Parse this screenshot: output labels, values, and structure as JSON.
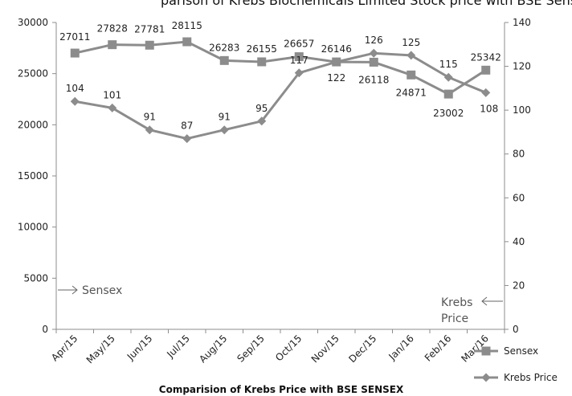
{
  "title_fragment": "parison of Krebs Biochemicals Limited Stock price with BSE Sensex:",
  "caption": "Comparision of Krebs Price with BSE SENSEX",
  "colors": {
    "series": "#8c8c8c",
    "axis": "#8c8c8c",
    "text": "#222222"
  },
  "chart_data": {
    "type": "line",
    "categories": [
      "Apr/15",
      "May/15",
      "Jun/15",
      "Jul/15",
      "Aug/15",
      "Sep/15",
      "Oct/15",
      "Nov/15",
      "Dec/15",
      "Jan/16",
      "Feb/16",
      "Mar/16"
    ],
    "series": [
      {
        "name": "Sensex",
        "axis": "left",
        "marker": "square",
        "values": [
          27011,
          27828,
          27781,
          28115,
          26283,
          26155,
          26657,
          26146,
          26118,
          24871,
          23002,
          25342
        ]
      },
      {
        "name": "Krebs Price",
        "axis": "right",
        "marker": "diamond",
        "values": [
          104,
          101,
          91,
          87,
          91,
          95,
          117,
          122,
          126,
          125,
          115,
          108
        ]
      }
    ],
    "y_left": {
      "min": 0,
      "max": 30000,
      "ticks": [
        0,
        5000,
        10000,
        15000,
        20000,
        25000,
        30000
      ]
    },
    "y_right": {
      "min": 0,
      "max": 140,
      "ticks": [
        0,
        20,
        40,
        60,
        80,
        100,
        120,
        140
      ]
    },
    "annotations": {
      "left": "Sensex",
      "right_line1": "Krebs",
      "right_line2": "Price"
    },
    "legend_position": "bottom-right",
    "grid": false
  }
}
